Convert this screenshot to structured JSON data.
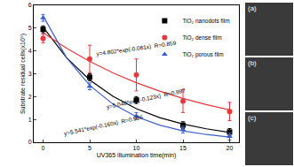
{
  "chart_data": {
    "type": "scatter",
    "x_label": "UV365 illumination time(min)",
    "y_label": "Substrate residual cells(x10⁵)",
    "xlim": [
      -1,
      21
    ],
    "xticks": [
      0,
      5,
      10,
      15,
      20
    ],
    "ylim": [
      0,
      6
    ],
    "yticks": [
      0,
      1,
      2,
      3,
      4,
      5,
      6
    ],
    "grid": false,
    "legend": "upper right",
    "series": [
      {
        "name": "TiO₂ nanodots film",
        "color": "#000000",
        "marker": "square",
        "x": [
          0,
          5,
          10,
          15,
          20
        ],
        "values": [
          4.95,
          2.85,
          1.85,
          0.75,
          0.45
        ],
        "errors": [
          0.15,
          0.15,
          0.15,
          0.15,
          0.15
        ],
        "fit_x": [
          0,
          2.5,
          5,
          7.5,
          10,
          12.5,
          15,
          17.5,
          20
        ],
        "fit_values": [
          5.05,
          3.71,
          2.73,
          2.01,
          1.47,
          1.08,
          0.8,
          0.59,
          0.43
        ],
        "equation": "y=5.048*exp(-0.123x)",
        "r": "R=0.997"
      },
      {
        "name": "TiO₂ dense film",
        "color": "#e8383d",
        "marker": "circle",
        "x": [
          0,
          5,
          10,
          15,
          20
        ],
        "values": [
          4.55,
          3.65,
          2.95,
          1.8,
          1.35
        ],
        "errors": [
          0.2,
          0.6,
          0.7,
          0.5,
          0.4
        ],
        "fit_x": [
          0,
          2.5,
          5,
          7.5,
          10,
          12.5,
          15,
          17.5,
          20
        ],
        "fit_values": [
          4.8,
          4.12,
          3.54,
          3.04,
          2.61,
          2.24,
          1.92,
          1.65,
          1.42
        ],
        "equation": "y=4.802*exp(-0.061x)",
        "r": "R=0.859"
      },
      {
        "name": "TiO₂ porous film",
        "color": "#3a5fcd",
        "marker": "triangle-up",
        "x": [
          0,
          5,
          10,
          15,
          20
        ],
        "values": [
          5.45,
          2.45,
          1.15,
          0.55,
          0.25
        ],
        "errors": [
          0.15,
          0.15,
          0.15,
          0.15,
          0.15
        ],
        "fit_x": [
          0,
          2.5,
          5,
          7.5,
          10,
          12.5,
          15,
          17.5,
          20
        ],
        "fit_values": [
          5.54,
          3.71,
          2.49,
          1.67,
          1.12,
          0.75,
          0.5,
          0.34,
          0.23
        ],
        "equation": "y=5.541*exp(-0.160x)",
        "r": "R=0.996"
      }
    ],
    "panels": [
      "(a)",
      "(b)",
      "(c)"
    ]
  }
}
